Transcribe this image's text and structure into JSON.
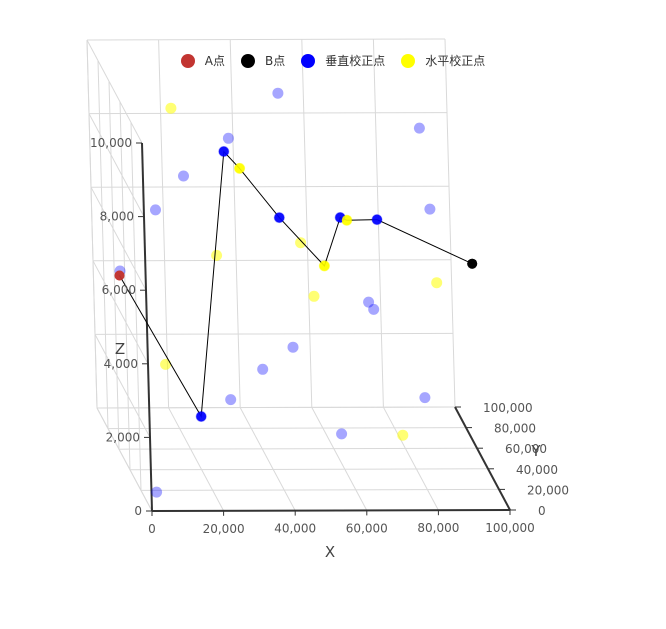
{
  "colors": {
    "background": "#ffffff",
    "grid": "#d9d9d9",
    "axis": "#333333",
    "line": "#000000"
  },
  "legend": {
    "placement": "top-center",
    "items": [
      {
        "key": "A",
        "label": "A点",
        "color": "#c23531"
      },
      {
        "key": "B",
        "label": "B点",
        "color": "#000000"
      },
      {
        "key": "V",
        "label": "垂直校正点",
        "color": "#0000ff"
      },
      {
        "key": "H",
        "label": "水平校正点",
        "color": "#ffff00"
      }
    ]
  },
  "chart_data": {
    "type": "scatter",
    "dimension": "3d",
    "x_label": "X",
    "y_label": "Y",
    "z_label": "Z",
    "x_range": [
      0,
      100000
    ],
    "y_range": [
      0,
      100000
    ],
    "z_range": [
      0,
      10000
    ],
    "x_ticks": [
      "0",
      "20,000",
      "40,000",
      "60,000",
      "80,000",
      "100,000"
    ],
    "y_ticks": [
      "0",
      "20,000",
      "40,000",
      "60,000",
      "80,000",
      "100,000"
    ],
    "z_ticks": [
      "0",
      "2,000",
      "4,000",
      "6,000",
      "8,000",
      "10,000"
    ],
    "grid": true,
    "series": [
      {
        "name": "A点",
        "points": [
          [
            0,
            50000,
            5000
          ]
        ]
      },
      {
        "name": "B点",
        "points": [
          [
            100000,
            59652,
            5022
          ]
        ]
      },
      {
        "name": "垂直校正点",
        "points": [
          [
            20000,
            38000,
            1500
          ],
          [
            33000,
            70000,
            7800
          ],
          [
            48000,
            70000,
            6000
          ],
          [
            65000,
            70000,
            6000
          ],
          [
            76000,
            75000,
            5800
          ],
          [
            6000,
            90000,
            4000
          ],
          [
            2000,
            4000,
            400
          ],
          [
            30000,
            40000,
            9000
          ],
          [
            80000,
            20000,
            2500
          ],
          [
            55000,
            10000,
            1800
          ],
          [
            90000,
            85000,
            8000
          ],
          [
            12000,
            60000,
            6500
          ],
          [
            45000,
            30000,
            3600
          ],
          [
            70000,
            45000,
            4200
          ],
          [
            25000,
            15000,
            2600
          ],
          [
            85000,
            35000,
            7200
          ],
          [
            50000,
            80000,
            9100
          ],
          [
            15000,
            25000,
            8400
          ],
          [
            65000,
            20000,
            5100
          ],
          [
            40000,
            55000,
            2300
          ]
        ]
      },
      {
        "name": "水平校正点",
        "points": [
          [
            57000,
            48000,
            5300
          ],
          [
            68000,
            78000,
            5700
          ],
          [
            38000,
            75000,
            7200
          ],
          [
            28000,
            55000,
            5400
          ],
          [
            10000,
            35000,
            3000
          ],
          [
            45000,
            10000,
            7000
          ],
          [
            75000,
            30000,
            1200
          ],
          [
            90000,
            60000,
            4500
          ],
          [
            20000,
            80000,
            8700
          ],
          [
            60000,
            90000,
            3300
          ]
        ]
      }
    ],
    "route": {
      "color": "#000000",
      "points": [
        [
          0,
          50000,
          5000
        ],
        [
          20000,
          38000,
          1500
        ],
        [
          33000,
          70000,
          7800
        ],
        [
          38000,
          75000,
          7200
        ],
        [
          48000,
          70000,
          6000
        ],
        [
          57000,
          48000,
          5300
        ],
        [
          65000,
          70000,
          6000
        ],
        [
          68000,
          78000,
          5700
        ],
        [
          76000,
          75000,
          5800
        ],
        [
          100000,
          59652,
          5022
        ]
      ]
    }
  }
}
